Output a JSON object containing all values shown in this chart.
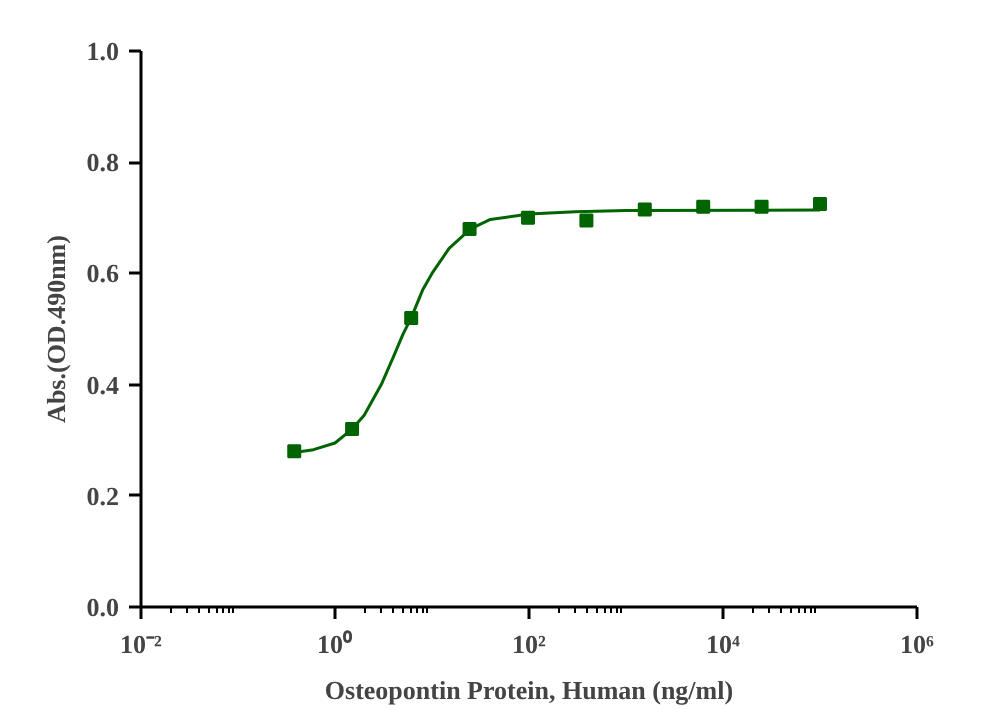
{
  "chart_data": {
    "type": "scatter",
    "xlabel": "Osteopontin Protein, Human (ng/ml)",
    "ylabel": "Abs.(OD.490nm)",
    "log": "x",
    "xlim": [
      0.01,
      1000000
    ],
    "ylim": [
      0,
      1.0
    ],
    "xticks": [
      {
        "value": 0.01,
        "label": "10⁻²"
      },
      {
        "value": 1,
        "label": "10⁰"
      },
      {
        "value": 100,
        "label": "10²"
      },
      {
        "value": 10000,
        "label": "10⁴"
      },
      {
        "value": 1000000,
        "label": "10⁶"
      }
    ],
    "yticks": [
      {
        "value": 0,
        "label": "0.0"
      },
      {
        "value": 0.2,
        "label": "0.2"
      },
      {
        "value": 0.4,
        "label": "0.4"
      },
      {
        "value": 0.6,
        "label": "0.6"
      },
      {
        "value": 0.8,
        "label": "0.8"
      },
      {
        "value": 1.0,
        "label": "1.0"
      }
    ],
    "grid": false,
    "series": [
      {
        "marker": "square",
        "color": "#006400",
        "x": [
          0.38,
          1.5,
          6.1,
          24.4,
          97.7,
          390.6,
          1562.5,
          6250,
          25000,
          100000
        ],
        "values": [
          0.28,
          0.32,
          0.52,
          0.68,
          0.7,
          0.695,
          0.715,
          0.72,
          0.72,
          0.725
        ]
      },
      {
        "type": "line",
        "marker": "none",
        "color": "#006400",
        "x": [
          0.38,
          0.6,
          1,
          1.5,
          2,
          3,
          4,
          5,
          6.1,
          8,
          10,
          15,
          25,
          40,
          100,
          300,
          1000,
          100000
        ],
        "values": [
          0.278,
          0.283,
          0.295,
          0.32,
          0.345,
          0.4,
          0.45,
          0.49,
          0.52,
          0.57,
          0.6,
          0.645,
          0.68,
          0.697,
          0.707,
          0.711,
          0.713,
          0.714
        ]
      }
    ]
  }
}
